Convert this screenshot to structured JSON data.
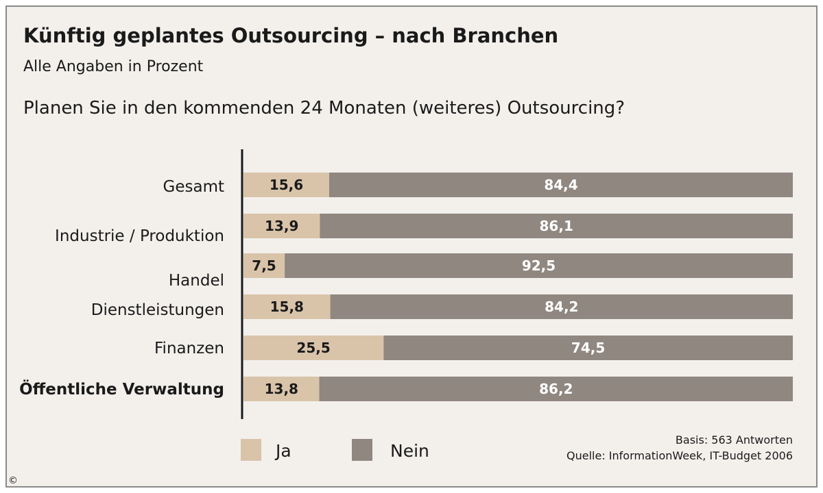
{
  "chart_data": {
    "type": "bar",
    "orientation": "horizontal",
    "stacked": true,
    "title": "Künftig geplantes Outsourcing – nach Branchen",
    "subtitle": "Alle Angaben in Prozent",
    "question": "Planen Sie in den kommenden 24 Monaten (weiteres) Outsourcing?",
    "categories": [
      "Gesamt",
      "Industrie / Produktion",
      "Handel",
      "Dienstleistungen",
      "Finanzen",
      "Öffentliche Verwaltung"
    ],
    "bold_categories": [
      "Öffentliche Verwaltung"
    ],
    "series": [
      {
        "name": "Ja",
        "color": "#d9c4aa",
        "values": [
          15.6,
          13.9,
          7.5,
          15.8,
          25.5,
          13.8
        ],
        "labels": [
          "15,6",
          "13,9",
          "7,5",
          "15,8",
          "25,5",
          "13,8"
        ]
      },
      {
        "name": "Nein",
        "color": "#8f8780",
        "values": [
          84.4,
          86.1,
          92.5,
          84.2,
          74.5,
          86.2
        ],
        "labels": [
          "84,4",
          "86,1",
          "92,5",
          "84,2",
          "74,5",
          "86,2"
        ]
      }
    ],
    "xlim": [
      0,
      100
    ],
    "grid": false,
    "legend_position": "bottom-left"
  },
  "notes": {
    "basis": "Basis: 563 Antworten",
    "source": "Quelle: InformationWeek, IT-Budget 2006"
  },
  "copyright_symbol": "©",
  "colors": {
    "background": "#f3f0ec",
    "ja": "#d9c4aa",
    "nein": "#8f8780",
    "axis": "#1a1a1a"
  }
}
